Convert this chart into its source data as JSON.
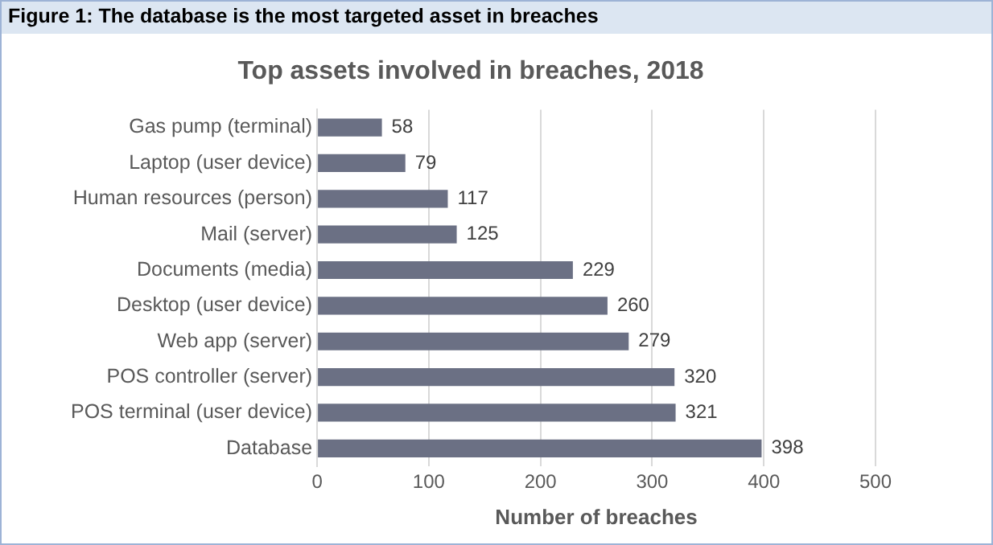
{
  "chart_data": {
    "type": "bar",
    "orientation": "horizontal",
    "title": "Top assets involved in breaches, 2018",
    "annotations": [
      "Figure 1: The database is the most targeted asset in breaches"
    ],
    "categories": [
      "Gas pump (terminal)",
      "Laptop (user device)",
      "Human resources (person)",
      "Mail (server)",
      "Documents (media)",
      "Desktop (user device)",
      "Web app (server)",
      "POS controller (server)",
      "POS terminal (user device)",
      "Database"
    ],
    "values": [
      58,
      79,
      117,
      125,
      229,
      260,
      279,
      320,
      321,
      398
    ],
    "color": "#6b7084",
    "xlim": [
      0,
      500
    ],
    "xticks": [
      0,
      100,
      200,
      300,
      400,
      500
    ],
    "xlabel": "Number of breaches",
    "grid": "x",
    "data_labels": true,
    "legend": false
  }
}
